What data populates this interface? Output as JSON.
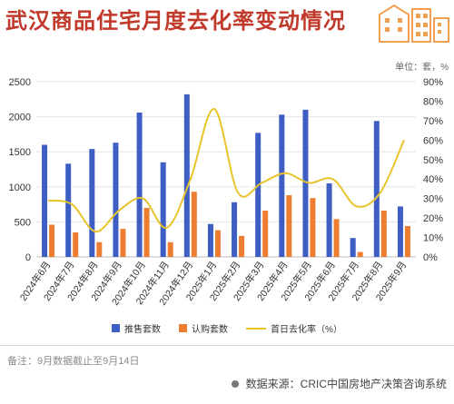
{
  "header": {
    "title": "武汉商品住宅月度去化率变动情况",
    "unit": "单位：套，%"
  },
  "footer": {
    "note": "备注：9月数据截止至9月14日",
    "source": "数据来源：CRIC中国房地产决策咨询系统"
  },
  "colors": {
    "title": "#c0392b",
    "bar_supply": "#3e5ec4",
    "bar_subscribe": "#ed7d31",
    "line": "#e8c42a",
    "decoration": "#f0a050"
  },
  "chart_data": {
    "type": "bar",
    "categories": [
      "2024年6月",
      "2024年7月",
      "2024年8月",
      "2024年9月",
      "2024年10月",
      "2024年11月",
      "2024年12月",
      "2025年1月",
      "2025年2月",
      "2025年3月",
      "2025年4月",
      "2025年5月",
      "2025年6月",
      "2025年7月",
      "2025年8月",
      "2025年9月"
    ],
    "series": [
      {
        "name": "推售套数",
        "type": "bar",
        "axis": "left",
        "values": [
          1600,
          1330,
          1540,
          1630,
          2060,
          1350,
          2320,
          470,
          780,
          1770,
          2030,
          2100,
          1050,
          270,
          1940,
          720
        ]
      },
      {
        "name": "认购套数",
        "type": "bar",
        "axis": "left",
        "values": [
          460,
          350,
          210,
          400,
          700,
          210,
          930,
          380,
          300,
          660,
          880,
          840,
          540,
          70,
          660,
          440
        ]
      },
      {
        "name": "首日去化率（%）",
        "type": "line",
        "axis": "right",
        "values": [
          29,
          27,
          13,
          24,
          30,
          15,
          40,
          76,
          33,
          38,
          43,
          38,
          40,
          26,
          33,
          60
        ]
      }
    ],
    "left_axis": {
      "ylim": [
        0,
        2500
      ],
      "ticks": [
        "0",
        "500",
        "1000",
        "1500",
        "2000",
        "2500"
      ]
    },
    "right_axis": {
      "ylim": [
        0,
        90
      ],
      "ticks": [
        "0%",
        "10%",
        "20%",
        "30%",
        "40%",
        "50%",
        "60%",
        "70%",
        "80%",
        "90%"
      ]
    },
    "grid": true,
    "legend_position": "bottom"
  }
}
